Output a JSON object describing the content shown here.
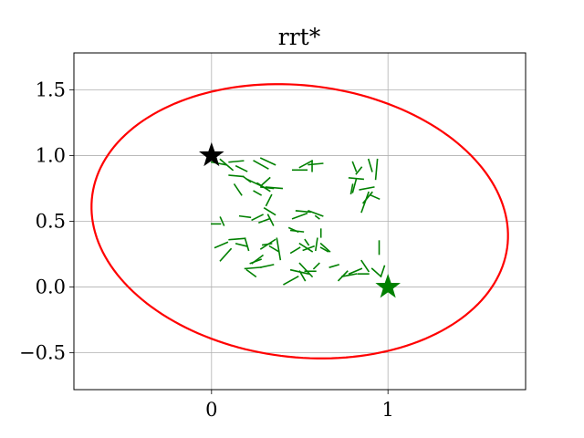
{
  "chart_data": {
    "type": "line",
    "title": "rrt*",
    "xlabel": "",
    "ylabel": "",
    "xlim": [
      -0.78,
      1.78
    ],
    "ylim": [
      -0.78,
      1.78
    ],
    "grid": true,
    "x_ticks": [
      {
        "value": 0,
        "label": "0"
      },
      {
        "value": 1,
        "label": "1"
      }
    ],
    "y_ticks": [
      {
        "value": -0.5,
        "label": "−0.5"
      },
      {
        "value": 0.0,
        "label": "0.0"
      },
      {
        "value": 0.5,
        "label": "0.5"
      },
      {
        "value": 1.0,
        "label": "1.0"
      },
      {
        "value": 1.5,
        "label": "1.5"
      }
    ],
    "ellipse": {
      "color": "#ff0000",
      "center": [
        0.5,
        0.5
      ],
      "semi_major": 1.2,
      "semi_minor": 1.02,
      "angle_deg": -20
    },
    "start": {
      "x": 0,
      "y": 1,
      "marker": "star",
      "color": "#000000"
    },
    "goal": {
      "x": 1,
      "y": 0,
      "marker": "star",
      "color": "#008000"
    },
    "tree_color": "#008000",
    "tree_edges": [
      [
        [
          0.0,
          0.95
        ],
        [
          0.08,
          0.93
        ]
      ],
      [
        [
          0.05,
          0.97
        ],
        [
          0.12,
          0.89
        ]
      ],
      [
        [
          0.1,
          0.95
        ],
        [
          0.18,
          0.96
        ]
      ],
      [
        [
          0.14,
          0.92
        ],
        [
          0.2,
          0.88
        ]
      ],
      [
        [
          0.24,
          0.96
        ],
        [
          0.32,
          0.9
        ]
      ],
      [
        [
          0.28,
          0.98
        ],
        [
          0.36,
          0.93
        ]
      ],
      [
        [
          0.1,
          0.85
        ],
        [
          0.18,
          0.84
        ]
      ],
      [
        [
          0.18,
          0.84
        ],
        [
          0.22,
          0.8
        ]
      ],
      [
        [
          0.13,
          0.78
        ],
        [
          0.17,
          0.7
        ]
      ],
      [
        [
          0.2,
          0.82
        ],
        [
          0.28,
          0.77
        ]
      ],
      [
        [
          0.26,
          0.79
        ],
        [
          0.33,
          0.73
        ]
      ],
      [
        [
          0.28,
          0.77
        ],
        [
          0.33,
          0.83
        ]
      ],
      [
        [
          0.28,
          0.76
        ],
        [
          0.35,
          0.75
        ]
      ],
      [
        [
          0.31,
          0.76
        ],
        [
          0.4,
          0.75
        ]
      ],
      [
        [
          0.24,
          0.73
        ],
        [
          0.28,
          0.7
        ]
      ],
      [
        [
          0.34,
          0.7
        ],
        [
          0.31,
          0.62
        ]
      ],
      [
        [
          0.46,
          0.89
        ],
        [
          0.54,
          0.89
        ]
      ],
      [
        [
          0.5,
          0.91
        ],
        [
          0.57,
          0.96
        ]
      ],
      [
        [
          0.57,
          0.96
        ],
        [
          0.57,
          0.88
        ]
      ],
      [
        [
          0.55,
          0.93
        ],
        [
          0.63,
          0.94
        ]
      ],
      [
        [
          0.8,
          0.95
        ],
        [
          0.82,
          0.88
        ]
      ],
      [
        [
          0.89,
          0.97
        ],
        [
          0.91,
          0.88
        ]
      ],
      [
        [
          0.85,
          0.91
        ],
        [
          0.82,
          0.86
        ]
      ],
      [
        [
          0.78,
          0.83
        ],
        [
          0.86,
          0.82
        ]
      ],
      [
        [
          0.8,
          0.78
        ],
        [
          0.79,
          0.71
        ]
      ],
      [
        [
          0.82,
          0.82
        ],
        [
          0.8,
          0.72
        ]
      ],
      [
        [
          0.94,
          0.97
        ],
        [
          0.93,
          0.82
        ]
      ],
      [
        [
          0.84,
          0.74
        ],
        [
          0.92,
          0.76
        ]
      ],
      [
        [
          0.86,
          0.64
        ],
        [
          0.91,
          0.72
        ]
      ],
      [
        [
          0.9,
          0.7
        ],
        [
          0.95,
          0.67
        ]
      ],
      [
        [
          0.89,
          0.72
        ],
        [
          0.85,
          0.57
        ]
      ],
      [
        [
          0.0,
          0.48
        ],
        [
          0.05,
          0.48
        ]
      ],
      [
        [
          0.05,
          0.53
        ],
        [
          0.07,
          0.47
        ]
      ],
      [
        [
          0.16,
          0.54
        ],
        [
          0.22,
          0.53
        ]
      ],
      [
        [
          0.23,
          0.51
        ],
        [
          0.29,
          0.55
        ]
      ],
      [
        [
          0.3,
          0.6
        ],
        [
          0.36,
          0.55
        ]
      ],
      [
        [
          0.32,
          0.55
        ],
        [
          0.35,
          0.47
        ]
      ],
      [
        [
          0.33,
          0.52
        ],
        [
          0.27,
          0.49
        ]
      ],
      [
        [
          0.48,
          0.58
        ],
        [
          0.56,
          0.57
        ]
      ],
      [
        [
          0.46,
          0.52
        ],
        [
          0.54,
          0.56
        ]
      ],
      [
        [
          0.55,
          0.58
        ],
        [
          0.63,
          0.54
        ]
      ],
      [
        [
          0.59,
          0.54
        ],
        [
          0.61,
          0.52
        ]
      ],
      [
        [
          0.02,
          0.3
        ],
        [
          0.09,
          0.34
        ]
      ],
      [
        [
          0.05,
          0.2
        ],
        [
          0.11,
          0.29
        ]
      ],
      [
        [
          0.1,
          0.36
        ],
        [
          0.19,
          0.37
        ]
      ],
      [
        [
          0.14,
          0.33
        ],
        [
          0.2,
          0.31
        ]
      ],
      [
        [
          0.19,
          0.37
        ],
        [
          0.21,
          0.28
        ]
      ],
      [
        [
          0.22,
          0.18
        ],
        [
          0.28,
          0.21
        ]
      ],
      [
        [
          0.23,
          0.18
        ],
        [
          0.29,
          0.24
        ]
      ],
      [
        [
          0.2,
          0.13
        ],
        [
          0.25,
          0.08
        ]
      ],
      [
        [
          0.19,
          0.14
        ],
        [
          0.28,
          0.15
        ]
      ],
      [
        [
          0.28,
          0.15
        ],
        [
          0.35,
          0.17
        ]
      ],
      [
        [
          0.29,
          0.32
        ],
        [
          0.34,
          0.33
        ]
      ],
      [
        [
          0.28,
          0.29
        ],
        [
          0.36,
          0.36
        ]
      ],
      [
        [
          0.33,
          0.31
        ],
        [
          0.38,
          0.27
        ]
      ],
      [
        [
          0.37,
          0.37
        ],
        [
          0.39,
          0.21
        ]
      ],
      [
        [
          0.44,
          0.45
        ],
        [
          0.49,
          0.42
        ]
      ],
      [
        [
          0.45,
          0.43
        ],
        [
          0.52,
          0.42
        ]
      ],
      [
        [
          0.53,
          0.36
        ],
        [
          0.55,
          0.32
        ]
      ],
      [
        [
          0.5,
          0.33
        ],
        [
          0.57,
          0.27
        ]
      ],
      [
        [
          0.52,
          0.28
        ],
        [
          0.58,
          0.31
        ]
      ],
      [
        [
          0.59,
          0.28
        ],
        [
          0.6,
          0.37
        ]
      ],
      [
        [
          0.62,
          0.33
        ],
        [
          0.67,
          0.27
        ]
      ],
      [
        [
          0.62,
          0.44
        ],
        [
          0.62,
          0.38
        ]
      ],
      [
        [
          0.62,
          0.3
        ],
        [
          0.66,
          0.27
        ]
      ],
      [
        [
          0.5,
          0.18
        ],
        [
          0.57,
          0.08
        ]
      ],
      [
        [
          0.45,
          0.13
        ],
        [
          0.55,
          0.1
        ]
      ],
      [
        [
          0.53,
          0.12
        ],
        [
          0.59,
          0.12
        ]
      ],
      [
        [
          0.58,
          0.14
        ],
        [
          0.61,
          0.18
        ]
      ],
      [
        [
          0.41,
          0.02
        ],
        [
          0.49,
          0.08
        ]
      ],
      [
        [
          0.5,
          0.12
        ],
        [
          0.53,
          0.05
        ]
      ],
      [
        [
          0.72,
          0.05
        ],
        [
          0.77,
          0.12
        ]
      ],
      [
        [
          0.74,
          0.08
        ],
        [
          0.82,
          0.1
        ]
      ],
      [
        [
          0.78,
          0.1
        ],
        [
          0.85,
          0.14
        ]
      ],
      [
        [
          0.83,
          0.1
        ],
        [
          0.89,
          0.1
        ]
      ],
      [
        [
          0.85,
          0.2
        ],
        [
          0.89,
          0.12
        ]
      ],
      [
        [
          0.91,
          0.14
        ],
        [
          0.96,
          0.08
        ]
      ],
      [
        [
          0.96,
          0.08
        ],
        [
          0.98,
          0.16
        ]
      ],
      [
        [
          0.95,
          0.35
        ],
        [
          0.95,
          0.25
        ]
      ],
      [
        [
          0.67,
          0.15
        ],
        [
          0.72,
          0.17
        ]
      ],
      [
        [
          0.5,
          0.3
        ],
        [
          0.45,
          0.26
        ]
      ]
    ]
  }
}
